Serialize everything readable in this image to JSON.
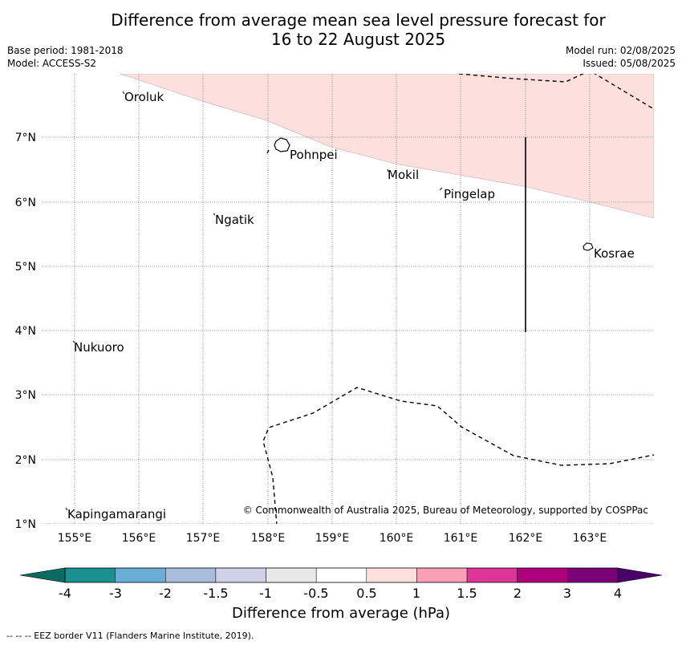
{
  "title": {
    "line1": "Difference from average mean sea level pressure forecast for",
    "line2": "16 to 22 August 2025"
  },
  "meta": {
    "base_period": "Base period: 1981-2018",
    "model": "Model: ACCESS-S2",
    "model_run": "Model run: 02/08/2025",
    "issued": "Issued: 05/08/2025"
  },
  "map": {
    "lat_ticks": [
      "7°N",
      "6°N",
      "5°N",
      "4°N",
      "3°N",
      "2°N",
      "1°N"
    ],
    "lon_ticks": [
      "155°E",
      "156°E",
      "157°E",
      "158°E",
      "159°E",
      "160°E",
      "161°E",
      "162°E",
      "163°E"
    ],
    "places": [
      {
        "name": "Oroluk"
      },
      {
        "name": "Pohnpei"
      },
      {
        "name": "Mokil"
      },
      {
        "name": "Pingelap"
      },
      {
        "name": "Ngatik"
      },
      {
        "name": "Kosrae"
      },
      {
        "name": "Nukuoro"
      },
      {
        "name": "Kapingamarangi"
      }
    ],
    "shading_color": "#fde0dd",
    "credit": "© Commonwealth of Australia 2025, Bureau of Meteorology, supported by COSPPac"
  },
  "colorbar": {
    "labels": [
      "-4",
      "-3",
      "-2",
      "-1.5",
      "-1",
      "-0.5",
      "0.5",
      "1",
      "1.5",
      "2",
      "3",
      "4"
    ],
    "colors": [
      "#1a9090",
      "#6aaed6",
      "#a8bcdc",
      "#d0d0e6",
      "#e8e8e8",
      "#ffffff",
      "#fde0dd",
      "#fa9fb5",
      "#dd3497",
      "#ae017e",
      "#7a0177"
    ],
    "under_color": "#0a6b63",
    "over_color": "#49006a",
    "title": "Difference from average (hPa)"
  },
  "footer": "-- -- -- EEZ border V11 (Flanders Marine Institute, 2019)."
}
